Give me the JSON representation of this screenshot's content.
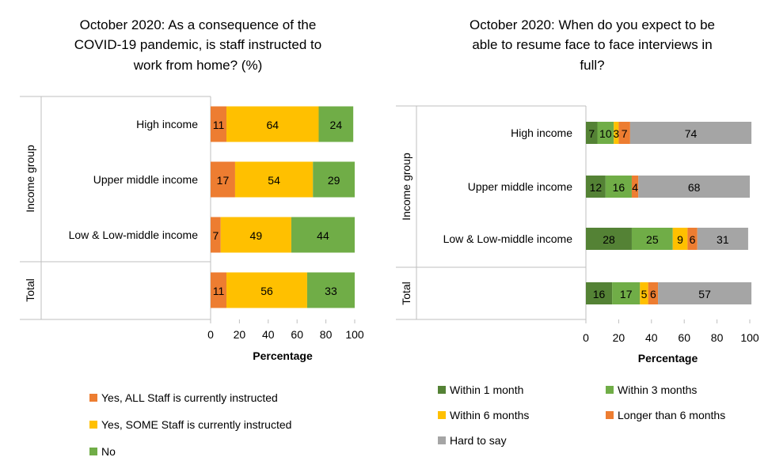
{
  "chart_data": [
    {
      "type": "bar",
      "orientation": "horizontal",
      "stacked": true,
      "title": "October 2020: As a consequence of the COVID-19 pandemic, is staff instructed to work from home? (%)",
      "title_lines": [
        "October 2020: As a consequence of the",
        "COVID-19 pandemic, is staff instructed to",
        "work from home? (%)"
      ],
      "xlabel": "Percentage",
      "xlim": [
        0,
        100
      ],
      "xticks": [
        0,
        20,
        40,
        60,
        80,
        100
      ],
      "group_labels": [
        "Income group",
        "Total"
      ],
      "categories": [
        "High income",
        "Upper middle income",
        "Low & Low-middle income",
        ""
      ],
      "category_groups": [
        0,
        0,
        0,
        1
      ],
      "series": [
        {
          "name": "Yes, ALL Staff is currently instructed",
          "color": "#ED7D31",
          "values": [
            11,
            17,
            7,
            11
          ]
        },
        {
          "name": "Yes, SOME Staff is currently instructed",
          "color": "#FFC000",
          "values": [
            64,
            54,
            49,
            56
          ]
        },
        {
          "name": "No",
          "color": "#70AD47",
          "values": [
            24,
            29,
            44,
            33
          ]
        }
      ],
      "legend_position": "bottom"
    },
    {
      "type": "bar",
      "orientation": "horizontal",
      "stacked": true,
      "title": "October 2020: When do you expect to be able to resume face to face interviews in full?",
      "title_lines": [
        "October 2020: When do you expect to be",
        "able to resume face to face interviews in",
        "full?"
      ],
      "xlabel": "Percentage",
      "xlim": [
        0,
        100
      ],
      "xticks": [
        0,
        20,
        40,
        60,
        80,
        100
      ],
      "group_labels": [
        "Income group",
        "Total"
      ],
      "categories": [
        "High income",
        "Upper middle income",
        "Low & Low-middle income",
        ""
      ],
      "category_groups": [
        0,
        0,
        0,
        1
      ],
      "series": [
        {
          "name": "Within 1 month",
          "color": "#548235",
          "values": [
            7,
            12,
            28,
            16
          ]
        },
        {
          "name": "Within 3 months",
          "color": "#70AD47",
          "values": [
            10,
            16,
            25,
            17
          ]
        },
        {
          "name": "Within 6 months",
          "color": "#FFC000",
          "values": [
            3,
            0,
            9,
            5
          ]
        },
        {
          "name": "Longer than 6 months",
          "color": "#ED7D31",
          "values": [
            7,
            4,
            6,
            6
          ]
        },
        {
          "name": "Hard to say",
          "color": "#A5A5A5",
          "values": [
            74,
            68,
            31,
            57
          ]
        }
      ],
      "legend_position": "bottom"
    }
  ]
}
